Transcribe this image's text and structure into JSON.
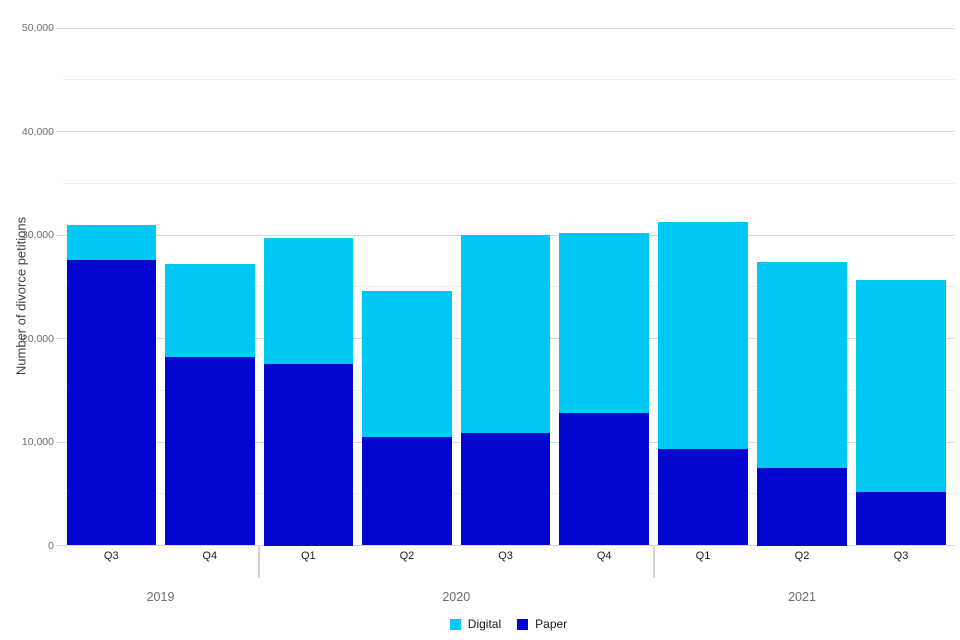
{
  "chart_data": {
    "type": "bar",
    "variant": "stacked-column",
    "title": "",
    "xlabel": "",
    "ylabel": "Number of divorce petitions",
    "ylim": [
      0,
      50000
    ],
    "ytick_interval": 10000,
    "minor_grid_interval": 5000,
    "ytick_labels": [
      "0",
      "10,000",
      "20,000",
      "30,000",
      "40,000",
      "50,000"
    ],
    "grid": true,
    "legend_position": "bottom",
    "legend_order": [
      "Digital",
      "Paper"
    ],
    "groups": [
      {
        "year": "2019",
        "quarters": [
          "Q3",
          "Q4"
        ]
      },
      {
        "year": "2020",
        "quarters": [
          "Q1",
          "Q2",
          "Q3",
          "Q4"
        ]
      },
      {
        "year": "2021",
        "quarters": [
          "Q1",
          "Q2",
          "Q3"
        ]
      }
    ],
    "categories": [
      "2019 Q3",
      "2019 Q4",
      "2020 Q1",
      "2020 Q2",
      "2020 Q3",
      "2020 Q4",
      "2021 Q1",
      "2021 Q2",
      "2021 Q3"
    ],
    "series": [
      {
        "name": "Digital",
        "color": "#00c8f5",
        "stack_position": "top",
        "values": [
          3400,
          9000,
          12200,
          14100,
          19100,
          17400,
          22000,
          19900,
          20500
        ]
      },
      {
        "name": "Paper",
        "color": "#0407cf",
        "stack_position": "bottom",
        "values": [
          27600,
          18200,
          17500,
          10500,
          10900,
          12800,
          9300,
          7500,
          5200
        ]
      }
    ],
    "totals": [
      31000,
      27200,
      29700,
      24600,
      30000,
      30200,
      31300,
      27400,
      25700
    ]
  },
  "colors": {
    "background": "#ffffff",
    "grid_major": "#d9d9d9",
    "grid_minor": "#eeeeee",
    "axis_text": "#6b6b6b",
    "quarter_text": "#1c1c1c",
    "year_text": "#6e6e6e",
    "divider": "#d2d2d2"
  }
}
